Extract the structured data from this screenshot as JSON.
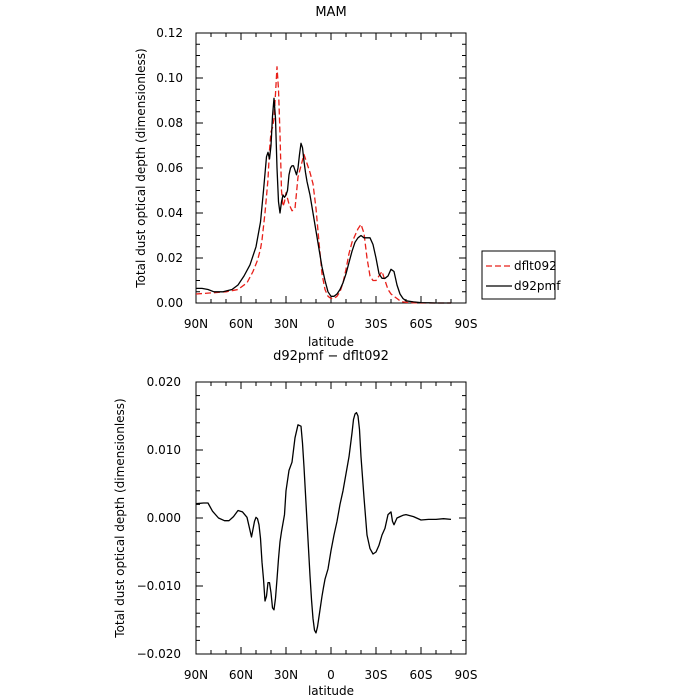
{
  "chart_data": [
    {
      "type": "line",
      "title": "MAM",
      "xlabel": "latitude",
      "ylabel": "Total dust optical depth (dimensionless)",
      "xlim": [
        90,
        -90
      ],
      "ylim": [
        0,
        0.12
      ],
      "x_ticks": [
        90,
        60,
        30,
        0,
        -30,
        -60,
        -90
      ],
      "x_tick_labels": [
        "90N",
        "60N",
        "30N",
        "0",
        "30S",
        "60S",
        "90S"
      ],
      "y_ticks": [
        0,
        0.02,
        0.04,
        0.06,
        0.08,
        0.1,
        0.12
      ],
      "y_tick_labels": [
        "0.00",
        "0.02",
        "0.04",
        "0.06",
        "0.08",
        "0.10",
        "0.12"
      ],
      "legend": "right",
      "series": [
        {
          "name": "dflt092",
          "color": "#e8201a",
          "dash": true,
          "x": [
            90,
            80,
            70,
            62,
            56,
            52,
            49,
            47,
            46,
            44,
            42,
            41,
            40,
            39,
            38,
            37,
            36,
            35,
            34,
            33,
            32,
            31,
            30,
            28,
            26,
            24,
            22,
            20,
            18,
            16,
            14,
            12,
            10,
            8,
            6,
            4,
            2,
            0,
            -2,
            -4,
            -6,
            -8,
            -10,
            -12,
            -14,
            -16,
            -18,
            -20,
            -22,
            -24,
            -26,
            -28,
            -30,
            -32,
            -34,
            -36,
            -38,
            -40,
            -42,
            -44,
            -46,
            -48,
            -50,
            -55,
            -60,
            -65,
            -70,
            -75,
            -80
          ],
          "y": [
            0.004,
            0.0045,
            0.005,
            0.006,
            0.009,
            0.014,
            0.019,
            0.024,
            0.028,
            0.04,
            0.055,
            0.068,
            0.076,
            0.078,
            0.082,
            0.093,
            0.105,
            0.095,
            0.075,
            0.05,
            0.043,
            0.045,
            0.049,
            0.044,
            0.041,
            0.042,
            0.056,
            0.061,
            0.066,
            0.062,
            0.058,
            0.053,
            0.042,
            0.027,
            0.013,
            0.006,
            0.003,
            0.002,
            0.002,
            0.003,
            0.005,
            0.009,
            0.015,
            0.022,
            0.027,
            0.03,
            0.033,
            0.035,
            0.031,
            0.02,
            0.012,
            0.01,
            0.01,
            0.012,
            0.014,
            0.01,
            0.006,
            0.004,
            0.003,
            0.002,
            0.001,
            0.0005,
            0.0003,
            0.0001,
            0,
            0,
            0,
            0,
            0
          ]
        },
        {
          "name": "d92pmf",
          "color": "#000000",
          "dash": false,
          "x": [
            90,
            86,
            82,
            78,
            72,
            66,
            62,
            58,
            54,
            50,
            47,
            45,
            43,
            42,
            41,
            40,
            39,
            38,
            37,
            36,
            35,
            34,
            33,
            32,
            31,
            30,
            29,
            28,
            27,
            26,
            25,
            24,
            23,
            22,
            21,
            20,
            19,
            18,
            17,
            16,
            15,
            14,
            12,
            10,
            8,
            6,
            4,
            2,
            0,
            -2,
            -4,
            -6,
            -8,
            -10,
            -12,
            -14,
            -16,
            -18,
            -20,
            -22,
            -24,
            -26,
            -28,
            -30,
            -32,
            -34,
            -36,
            -38,
            -40,
            -42,
            -44,
            -46,
            -48,
            -50,
            -55,
            -60,
            -65,
            -70,
            -75,
            -80
          ],
          "y": [
            0.0065,
            0.0065,
            0.006,
            0.005,
            0.005,
            0.006,
            0.008,
            0.012,
            0.017,
            0.025,
            0.036,
            0.05,
            0.065,
            0.067,
            0.064,
            0.07,
            0.083,
            0.091,
            0.082,
            0.06,
            0.045,
            0.04,
            0.045,
            0.048,
            0.047,
            0.048,
            0.05,
            0.057,
            0.06,
            0.061,
            0.061,
            0.059,
            0.057,
            0.06,
            0.066,
            0.071,
            0.069,
            0.063,
            0.058,
            0.054,
            0.051,
            0.048,
            0.04,
            0.032,
            0.024,
            0.016,
            0.01,
            0.005,
            0.003,
            0.003,
            0.004,
            0.006,
            0.009,
            0.013,
            0.018,
            0.023,
            0.027,
            0.029,
            0.03,
            0.029,
            0.029,
            0.029,
            0.026,
            0.02,
            0.013,
            0.011,
            0.011,
            0.012,
            0.015,
            0.014,
            0.008,
            0.004,
            0.002,
            0.001,
            0.0005,
            0.0002,
            0.0001,
            0,
            0,
            0
          ]
        }
      ]
    },
    {
      "type": "line",
      "title": "d92pmf − dflt092",
      "xlabel": "latitude",
      "ylabel": "Total dust optical depth (dimensionless)",
      "xlim": [
        90,
        -90
      ],
      "ylim": [
        -0.02,
        0.02
      ],
      "x_ticks": [
        90,
        60,
        30,
        0,
        -30,
        -60,
        -90
      ],
      "x_tick_labels": [
        "90N",
        "60N",
        "30N",
        "0",
        "30S",
        "60S",
        "90S"
      ],
      "y_ticks": [
        -0.02,
        -0.01,
        0,
        0.01,
        0.02
      ],
      "y_tick_labels": [
        "−0.020",
        "−0.010",
        "0.000",
        "0.010",
        "0.020"
      ],
      "series": [
        {
          "color": "#000000",
          "dash": false,
          "x": [
            90,
            85,
            82,
            79,
            75,
            71,
            68,
            65,
            62,
            59,
            56,
            53,
            51,
            50,
            49,
            48,
            47,
            46,
            45,
            44,
            43,
            42,
            41,
            40,
            39,
            38,
            37,
            36,
            35,
            34,
            33,
            31,
            30,
            28,
            26,
            24,
            22,
            20,
            19,
            18,
            17,
            16,
            15,
            14,
            13,
            12,
            11,
            10,
            9,
            8,
            7,
            6,
            5,
            4,
            2,
            0,
            -2,
            -4,
            -6,
            -8,
            -10,
            -12,
            -14,
            -15,
            -16,
            -17,
            -18,
            -19,
            -20,
            -22,
            -24,
            -26,
            -28,
            -30,
            -32,
            -34,
            -36,
            -38,
            -40,
            -41,
            -42,
            -44,
            -46,
            -48,
            -50,
            -55,
            -60,
            -65,
            -70,
            -75,
            -80
          ],
          "y": [
            0.0021,
            0.0022,
            0.0022,
            0.001,
            0.0,
            -0.0004,
            -0.0004,
            0.0002,
            0.0011,
            0.0009,
            0.0001,
            -0.0028,
            -0.0005,
            0.0001,
            -0.0001,
            -0.001,
            -0.003,
            -0.0065,
            -0.009,
            -0.0122,
            -0.0115,
            -0.0095,
            -0.0095,
            -0.011,
            -0.0132,
            -0.0135,
            -0.0118,
            -0.009,
            -0.006,
            -0.0035,
            -0.002,
            0.0005,
            0.004,
            0.007,
            0.0082,
            0.0118,
            0.0137,
            0.0135,
            0.011,
            0.0075,
            0.0035,
            -0.0005,
            -0.0045,
            -0.0085,
            -0.012,
            -0.0148,
            -0.0165,
            -0.0169,
            -0.016,
            -0.0145,
            -0.013,
            -0.0115,
            -0.0102,
            -0.009,
            -0.0075,
            -0.0048,
            -0.0025,
            -0.0005,
            0.002,
            0.004,
            0.0065,
            0.009,
            0.0125,
            0.0145,
            0.0153,
            0.0155,
            0.015,
            0.013,
            0.009,
            0.003,
            -0.0025,
            -0.0045,
            -0.0053,
            -0.005,
            -0.004,
            -0.0025,
            -0.0015,
            0.0005,
            0.0009,
            -0.0005,
            -0.001,
            0.0,
            0.0002,
            0.0004,
            0.0005,
            0.0002,
            -0.0003,
            -0.0002,
            -0.0002,
            -0.0001,
            -0.0002
          ]
        }
      ]
    }
  ]
}
